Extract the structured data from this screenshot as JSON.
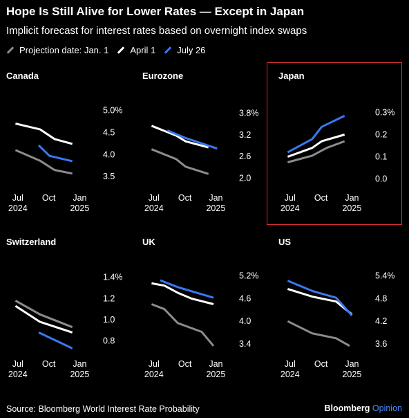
{
  "title": "Hope Is Still Alive for Lower Rates — Except in Japan",
  "subtitle": "Implicit forecast for interest rates based on overnight index swaps",
  "legend": [
    {
      "label": "Projection date: Jan. 1",
      "color": "#8c8c8c"
    },
    {
      "label": "April 1",
      "color": "#ffffff"
    },
    {
      "label": "July 26",
      "color": "#3a78f0"
    }
  ],
  "source": "Source: Bloomberg World Interest Rate Probability",
  "brand": {
    "name": "Bloomberg",
    "accent": "Opinion"
  },
  "chart_data": [
    {
      "type": "line",
      "title": "Canada",
      "xlim": [
        "2024-06-15",
        "2025-01-31"
      ],
      "x_ticks": [
        {
          "date": "2024-07-01",
          "lines": [
            "Jul",
            "2024"
          ]
        },
        {
          "date": "2024-10-01",
          "lines": [
            "Oct",
            ""
          ]
        },
        {
          "date": "2025-01-01",
          "lines": [
            "Jan",
            "2025"
          ]
        }
      ],
      "ylim": [
        3.3,
        5.1
      ],
      "y_ticks": [
        {
          "value": 5.0,
          "label": "5.0%"
        },
        {
          "value": 4.5,
          "label": "4.5"
        },
        {
          "value": 4.0,
          "label": "4.0"
        },
        {
          "value": 3.5,
          "label": "3.5"
        }
      ],
      "series": [
        {
          "key": "jan",
          "x": [
            "2024-06-24",
            "2024-09-05",
            "2024-10-18",
            "2024-12-10"
          ],
          "values": [
            4.1,
            3.86,
            3.65,
            3.57
          ]
        },
        {
          "key": "apr",
          "x": [
            "2024-06-24",
            "2024-09-05",
            "2024-10-18",
            "2024-12-10"
          ],
          "values": [
            4.7,
            4.57,
            4.35,
            4.24
          ]
        },
        {
          "key": "jul",
          "x": [
            "2024-09-01",
            "2024-10-03",
            "2024-12-10"
          ],
          "values": [
            4.21,
            3.97,
            3.85
          ]
        }
      ]
    },
    {
      "type": "line",
      "title": "Eurozone",
      "xlim": [
        "2024-06-15",
        "2025-01-31"
      ],
      "x_ticks": [
        {
          "date": "2024-07-01",
          "lines": [
            "Jul",
            "2024"
          ]
        },
        {
          "date": "2024-10-01",
          "lines": [
            "Oct",
            ""
          ]
        },
        {
          "date": "2025-01-01",
          "lines": [
            "Jan",
            "2025"
          ]
        }
      ],
      "ylim": [
        1.8,
        4.0
      ],
      "y_ticks": [
        {
          "value": 3.8,
          "label": "3.8%"
        },
        {
          "value": 3.2,
          "label": "3.2"
        },
        {
          "value": 2.6,
          "label": "2.6"
        },
        {
          "value": 2.0,
          "label": "2.0"
        }
      ],
      "series": [
        {
          "key": "jan",
          "x": [
            "2024-06-24",
            "2024-09-05",
            "2024-10-03",
            "2024-12-10"
          ],
          "values": [
            2.8,
            2.53,
            2.32,
            2.12
          ]
        },
        {
          "key": "apr",
          "x": [
            "2024-06-24",
            "2024-09-05",
            "2024-10-03",
            "2024-12-10"
          ],
          "values": [
            3.45,
            3.18,
            3.02,
            2.85
          ]
        },
        {
          "key": "jul",
          "x": [
            "2024-08-10",
            "2024-10-01",
            "2025-01-05"
          ],
          "values": [
            3.32,
            3.12,
            2.82
          ]
        }
      ]
    },
    {
      "type": "line",
      "title": "Japan",
      "xlim": [
        "2024-06-15",
        "2025-01-31"
      ],
      "x_ticks": [
        {
          "date": "2024-07-01",
          "lines": [
            "Jul",
            "2024"
          ]
        },
        {
          "date": "2024-10-01",
          "lines": [
            "Oct",
            ""
          ]
        },
        {
          "date": "2025-01-01",
          "lines": [
            "Jan",
            "2025"
          ]
        }
      ],
      "ylim": [
        -0.03,
        0.33
      ],
      "y_ticks": [
        {
          "value": 0.3,
          "label": "0.3%"
        },
        {
          "value": 0.2,
          "label": "0.2"
        },
        {
          "value": 0.1,
          "label": "0.1"
        },
        {
          "value": 0.0,
          "label": "0.0"
        }
      ],
      "series": [
        {
          "key": "jan",
          "x": [
            "2024-06-24",
            "2024-09-05",
            "2024-10-18",
            "2024-12-10"
          ],
          "values": [
            0.075,
            0.105,
            0.14,
            0.17
          ]
        },
        {
          "key": "apr",
          "x": [
            "2024-06-24",
            "2024-09-05",
            "2024-10-03",
            "2024-12-10"
          ],
          "values": [
            0.1,
            0.14,
            0.17,
            0.2
          ]
        },
        {
          "key": "jul",
          "x": [
            "2024-06-24",
            "2024-09-05",
            "2024-10-03",
            "2024-12-10"
          ],
          "values": [
            0.12,
            0.18,
            0.235,
            0.285
          ]
        }
      ]
    },
    {
      "type": "line",
      "title": "Switzerland",
      "xlim": [
        "2024-06-15",
        "2025-01-31"
      ],
      "x_ticks": [
        {
          "date": "2024-07-01",
          "lines": [
            "Jul",
            "2024"
          ]
        },
        {
          "date": "2024-10-01",
          "lines": [
            "Oct",
            ""
          ]
        },
        {
          "date": "2025-01-01",
          "lines": [
            "Jan",
            "2025"
          ]
        }
      ],
      "ylim": [
        0.7,
        1.45
      ],
      "y_ticks": [
        {
          "value": 1.4,
          "label": "1.4%"
        },
        {
          "value": 1.2,
          "label": "1.2"
        },
        {
          "value": 1.0,
          "label": "1.0"
        },
        {
          "value": 0.8,
          "label": "0.8"
        }
      ],
      "series": [
        {
          "key": "jan",
          "x": [
            "2024-06-24",
            "2024-09-05",
            "2024-12-10"
          ],
          "values": [
            1.18,
            1.05,
            0.93
          ]
        },
        {
          "key": "apr",
          "x": [
            "2024-06-24",
            "2024-09-05",
            "2024-12-10"
          ],
          "values": [
            1.13,
            0.98,
            0.88
          ]
        },
        {
          "key": "jul",
          "x": [
            "2024-09-01",
            "2024-12-10"
          ],
          "values": [
            0.88,
            0.73
          ]
        }
      ]
    },
    {
      "type": "line",
      "title": "UK",
      "xlim": [
        "2024-06-15",
        "2025-01-31"
      ],
      "x_ticks": [
        {
          "date": "2024-07-01",
          "lines": [
            "Jul",
            "2024"
          ]
        },
        {
          "date": "2024-10-01",
          "lines": [
            "Oct",
            ""
          ]
        },
        {
          "date": "2025-01-01",
          "lines": [
            "Jan",
            "2025"
          ]
        }
      ],
      "ylim": [
        3.2,
        5.3
      ],
      "y_ticks": [
        {
          "value": 5.2,
          "label": "5.2%"
        },
        {
          "value": 4.6,
          "label": "4.6"
        },
        {
          "value": 4.0,
          "label": "4.0"
        },
        {
          "value": 3.4,
          "label": "3.4"
        }
      ],
      "series": [
        {
          "key": "jan",
          "x": [
            "2024-06-24",
            "2024-08-01",
            "2024-09-10",
            "2024-11-20",
            "2024-12-25"
          ],
          "values": [
            4.45,
            4.32,
            3.95,
            3.72,
            3.35
          ]
        },
        {
          "key": "apr",
          "x": [
            "2024-06-24",
            "2024-08-01",
            "2024-09-10",
            "2024-10-20",
            "2024-12-25"
          ],
          "values": [
            5.0,
            4.94,
            4.75,
            4.6,
            4.45
          ]
        },
        {
          "key": "jul",
          "x": [
            "2024-07-20",
            "2024-09-10",
            "2024-12-25"
          ],
          "values": [
            5.08,
            4.9,
            4.62
          ]
        }
      ]
    },
    {
      "type": "line",
      "title": "US",
      "xlim": [
        "2024-06-15",
        "2025-01-31"
      ],
      "x_ticks": [
        {
          "date": "2024-07-01",
          "lines": [
            "Jul",
            "2024"
          ]
        },
        {
          "date": "2024-10-01",
          "lines": [
            "Oct",
            ""
          ]
        },
        {
          "date": "2025-01-01",
          "lines": [
            "Jan",
            "2025"
          ]
        }
      ],
      "ylim": [
        3.4,
        5.5
      ],
      "y_ticks": [
        {
          "value": 5.4,
          "label": "5.4%"
        },
        {
          "value": 4.8,
          "label": "4.8"
        },
        {
          "value": 4.2,
          "label": "4.2"
        },
        {
          "value": 3.6,
          "label": "3.6"
        }
      ],
      "series": [
        {
          "key": "jan",
          "x": [
            "2024-06-24",
            "2024-09-05",
            "2024-11-15",
            "2024-12-25"
          ],
          "values": [
            4.2,
            3.88,
            3.75,
            3.55
          ]
        },
        {
          "key": "apr",
          "x": [
            "2024-06-24",
            "2024-09-05",
            "2024-11-15",
            "2025-01-01"
          ],
          "values": [
            5.05,
            4.85,
            4.72,
            4.38
          ]
        },
        {
          "key": "jul",
          "x": [
            "2024-06-24",
            "2024-09-05",
            "2024-11-15",
            "2025-01-01"
          ],
          "values": [
            5.27,
            5.0,
            4.82,
            4.35
          ]
        }
      ]
    }
  ]
}
